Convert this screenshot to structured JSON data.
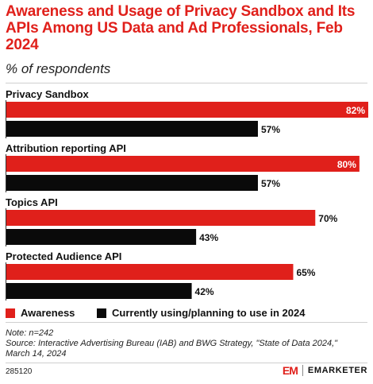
{
  "colors": {
    "awareness": "#e0201b",
    "using": "#0a0a0a",
    "brand": "#e0201b"
  },
  "legend": {
    "awareness": "Awareness",
    "using": "Currently using/planning to use in 2024"
  },
  "note": "Note: n=242",
  "source": "Source: Interactive Advertising Bureau (IAB) and BWG Strategy, \"State of Data 2024,\" March 14, 2024",
  "footer": {
    "id": "285120",
    "brand_logo": "EM",
    "brand_name": "EMARKETER"
  },
  "chart_data": {
    "type": "bar",
    "orientation": "horizontal",
    "title": "Awareness and Usage of Privacy Sandbox and Its APIs Among US Data and Ad Professionals, Feb 2024",
    "subtitle": "% of respondents",
    "categories": [
      "Privacy Sandbox",
      "Attribution reporting API",
      "Topics API",
      "Protected Audience API"
    ],
    "series": [
      {
        "name": "Awareness",
        "values": [
          82,
          80,
          70,
          65
        ]
      },
      {
        "name": "Currently using/planning to use in 2024",
        "values": [
          57,
          57,
          43,
          42
        ]
      }
    ],
    "value_suffix": "%",
    "xlim": [
      0,
      82
    ],
    "grid": false,
    "legend_position": "bottom-left"
  }
}
